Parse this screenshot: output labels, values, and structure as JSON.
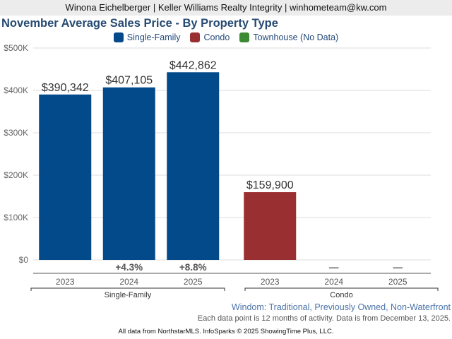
{
  "header": {
    "agent_line": "Winona Eichelberger | Keller Williams Realty Integrity | winhometeam@kw.com"
  },
  "chart_data": {
    "type": "bar",
    "title": "November Average Sales Price - By Property Type",
    "xlabel": "",
    "ylabel": "",
    "ylim": [
      0,
      500000
    ],
    "y_ticks": [
      0,
      100000,
      200000,
      300000,
      400000,
      500000
    ],
    "y_tick_labels": [
      "$0",
      "$100K",
      "$200K",
      "$300K",
      "$400K",
      "$500K"
    ],
    "grid": true,
    "legend_position": "top-center",
    "legend": [
      {
        "name": "Single-Family",
        "color": "#034a8a"
      },
      {
        "name": "Condo",
        "color": "#9a2f31"
      },
      {
        "name": "Townhouse (No Data)",
        "color": "#3d8a35"
      }
    ],
    "groups": [
      {
        "name": "Single-Family",
        "color": "#034a8a",
        "categories": [
          "2023",
          "2024",
          "2025"
        ],
        "values": [
          390342,
          407105,
          442862
        ],
        "value_labels": [
          "$390,342",
          "$407,105",
          "$442,862"
        ],
        "changes": [
          "",
          "+4.3%",
          "+8.8%"
        ]
      },
      {
        "name": "Condo",
        "color": "#9a2f31",
        "categories": [
          "2023",
          "2024",
          "2025"
        ],
        "values": [
          159900,
          null,
          null
        ],
        "value_labels": [
          "$159,900",
          "",
          ""
        ],
        "changes": [
          "",
          "—",
          "—"
        ]
      }
    ]
  },
  "notes": {
    "filter": "Windom: Traditional, Previously Owned, Non-Waterfront",
    "activity": "Each data point is 12 months of activity. Data is from December 13, 2025.",
    "footer": "All data from NorthstarMLS. InfoSparks © 2025 ShowingTime Plus, LLC."
  }
}
